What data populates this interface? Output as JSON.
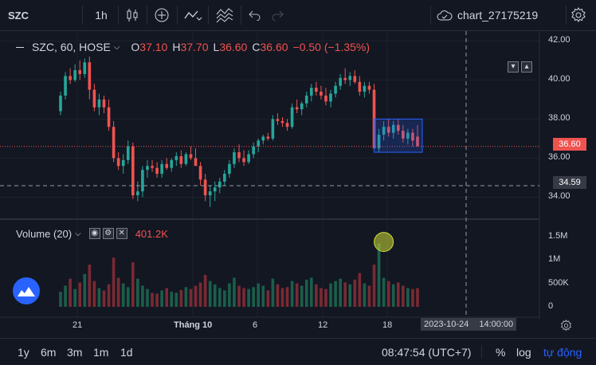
{
  "toolbar": {
    "symbol": "SZC",
    "interval": "1h",
    "chart_name": "chart_27175219",
    "icons": [
      "candles-icon",
      "add-indicator-icon",
      "indicators-icon",
      "compare-icon",
      "undo-icon",
      "redo-icon",
      "cloud-icon",
      "settings-icon"
    ]
  },
  "legend": {
    "title": "SZC, 60, HOSE",
    "open_label": "O",
    "open": "37.10",
    "high_label": "H",
    "high": "37.70",
    "low_label": "L",
    "low": "36.60",
    "close_label": "C",
    "close": "36.60",
    "change": "−0.50 (−1.35%)"
  },
  "volume_legend": {
    "title": "Volume (20)",
    "value": "401.2K"
  },
  "price_axis": {
    "ticks": [
      "42.00",
      "40.00",
      "38.00",
      "36.00",
      "34.00"
    ],
    "last_price": "36.60",
    "crosshair_price": "34.59"
  },
  "volume_axis": {
    "ticks": [
      "1.5M",
      "1M",
      "500K",
      "0"
    ]
  },
  "time_axis": {
    "ticks": [
      "21",
      "Tháng 10",
      "6",
      "12",
      "18"
    ],
    "crosshair_date": "2023-10-24",
    "crosshair_time": "14:00:00"
  },
  "bottombar": {
    "ranges": [
      "1y",
      "6m",
      "3m",
      "1m",
      "1d"
    ],
    "clock": "08:47:54 (UTC+7)",
    "percent_label": "%",
    "log_label": "log",
    "auto_label": "tự động"
  },
  "colors": {
    "up": "#26a69a",
    "down": "#ef5350",
    "background": "#131722",
    "selection": "#2962ff"
  },
  "chart_data": {
    "type": "candlestick",
    "series": [
      {
        "name": "price",
        "values": [
          [
            38.4,
            39.4,
            38.2,
            39.2
          ],
          [
            39.2,
            40.4,
            39.0,
            40.2
          ],
          [
            40.2,
            40.6,
            39.8,
            40.0
          ],
          [
            40.0,
            40.8,
            39.9,
            40.5
          ],
          [
            40.5,
            41.0,
            40.0,
            40.3
          ],
          [
            40.3,
            41.1,
            40.1,
            40.9
          ],
          [
            40.9,
            41.2,
            39.0,
            39.5
          ],
          [
            39.5,
            39.8,
            38.4,
            38.6
          ],
          [
            38.6,
            39.3,
            38.2,
            39.0
          ],
          [
            39.0,
            39.2,
            38.3,
            38.6
          ],
          [
            38.6,
            39.0,
            37.4,
            37.6
          ],
          [
            37.6,
            37.9,
            35.8,
            36.0
          ],
          [
            36.0,
            36.3,
            35.4,
            35.6
          ],
          [
            35.6,
            36.2,
            35.2,
            35.9
          ],
          [
            35.9,
            36.9,
            35.7,
            36.6
          ],
          [
            36.6,
            36.8,
            33.9,
            34.1
          ],
          [
            34.1,
            34.8,
            33.8,
            34.3
          ],
          [
            34.3,
            35.6,
            34.0,
            35.4
          ],
          [
            35.4,
            35.9,
            35.0,
            35.6
          ],
          [
            35.6,
            35.9,
            35.3,
            35.5
          ],
          [
            35.5,
            35.8,
            35.0,
            35.2
          ],
          [
            35.2,
            35.9,
            35.0,
            35.7
          ],
          [
            35.7,
            36.0,
            35.4,
            35.5
          ],
          [
            35.5,
            36.0,
            35.3,
            35.9
          ],
          [
            35.9,
            36.3,
            35.6,
            36.1
          ],
          [
            36.1,
            36.4,
            35.5,
            35.7
          ],
          [
            35.7,
            36.3,
            35.6,
            36.2
          ],
          [
            36.2,
            36.6,
            35.9,
            36.0
          ],
          [
            36.0,
            36.5,
            35.8,
            35.6
          ],
          [
            35.6,
            35.8,
            34.6,
            34.9
          ],
          [
            34.9,
            35.2,
            33.8,
            34.1
          ],
          [
            34.1,
            34.6,
            33.5,
            34.3
          ],
          [
            34.3,
            34.8,
            33.8,
            34.5
          ],
          [
            34.5,
            35.0,
            34.2,
            34.8
          ],
          [
            34.8,
            35.4,
            34.6,
            35.2
          ],
          [
            35.2,
            35.9,
            35.0,
            35.7
          ],
          [
            35.7,
            36.5,
            35.5,
            36.3
          ],
          [
            36.3,
            36.7,
            35.8,
            36.0
          ],
          [
            36.0,
            36.4,
            35.6,
            35.8
          ],
          [
            35.8,
            36.4,
            35.7,
            36.2
          ],
          [
            36.2,
            36.8,
            36.0,
            36.6
          ],
          [
            36.6,
            37.0,
            36.3,
            36.9
          ],
          [
            36.9,
            37.2,
            36.7,
            37.1
          ],
          [
            37.1,
            37.3,
            36.9,
            37.0
          ],
          [
            37.0,
            38.2,
            36.9,
            38.0
          ],
          [
            38.0,
            38.3,
            37.7,
            37.9
          ],
          [
            37.9,
            38.1,
            37.6,
            37.8
          ],
          [
            37.8,
            38.0,
            37.4,
            37.6
          ],
          [
            37.6,
            38.8,
            37.5,
            38.6
          ],
          [
            38.6,
            39.0,
            38.3,
            38.5
          ],
          [
            38.5,
            38.9,
            38.2,
            38.8
          ],
          [
            38.8,
            39.4,
            38.6,
            39.2
          ],
          [
            39.2,
            39.8,
            38.9,
            39.6
          ],
          [
            39.6,
            39.9,
            39.2,
            39.4
          ],
          [
            39.4,
            39.7,
            39.0,
            39.2
          ],
          [
            39.2,
            39.6,
            38.7,
            38.9
          ],
          [
            38.9,
            39.5,
            38.6,
            39.3
          ],
          [
            39.3,
            39.9,
            39.1,
            39.7
          ],
          [
            39.7,
            40.3,
            39.5,
            40.1
          ],
          [
            40.1,
            40.6,
            39.8,
            40.0
          ],
          [
            40.0,
            40.4,
            39.7,
            40.2
          ],
          [
            40.2,
            40.5,
            39.8,
            39.9
          ],
          [
            39.9,
            40.2,
            39.2,
            39.4
          ],
          [
            39.4,
            39.9,
            39.1,
            39.7
          ],
          [
            39.7,
            39.9,
            39.3,
            39.5
          ],
          [
            39.5,
            39.8,
            37.0,
            36.5
          ],
          [
            36.5,
            37.5,
            36.3,
            37.2
          ],
          [
            37.2,
            37.9,
            36.9,
            37.6
          ],
          [
            37.6,
            38.0,
            37.1,
            37.3
          ],
          [
            37.3,
            37.9,
            37.0,
            37.7
          ],
          [
            37.7,
            38.0,
            37.2,
            37.4
          ],
          [
            37.4,
            37.7,
            36.8,
            37.0
          ],
          [
            37.0,
            37.5,
            36.7,
            37.3
          ],
          [
            37.3,
            37.5,
            36.6,
            36.9
          ],
          [
            37.1,
            37.7,
            36.6,
            36.6
          ]
        ]
      },
      {
        "name": "Volume (20)",
        "values": [
          0.32,
          0.45,
          0.6,
          0.38,
          0.52,
          0.7,
          0.9,
          0.55,
          0.4,
          0.35,
          0.48,
          1.05,
          0.62,
          0.5,
          0.42,
          0.95,
          0.6,
          0.45,
          0.38,
          0.3,
          0.28,
          0.35,
          0.4,
          0.32,
          0.3,
          0.36,
          0.42,
          0.38,
          0.45,
          0.52,
          0.68,
          0.55,
          0.48,
          0.4,
          0.35,
          0.5,
          0.62,
          0.45,
          0.4,
          0.38,
          0.42,
          0.5,
          0.45,
          0.35,
          0.6,
          0.48,
          0.4,
          0.42,
          0.55,
          0.5,
          0.45,
          0.58,
          0.62,
          0.48,
          0.4,
          0.38,
          0.5,
          0.55,
          0.6,
          0.52,
          0.48,
          0.58,
          0.72,
          0.5,
          0.45,
          0.9,
          1.35,
          0.62,
          0.55,
          0.48,
          0.52,
          0.45,
          0.4,
          0.38,
          0.4
        ]
      }
    ],
    "ylim": [
      33.0,
      42.5
    ],
    "volume_ylim": [
      0,
      1.7
    ],
    "grid": true
  }
}
